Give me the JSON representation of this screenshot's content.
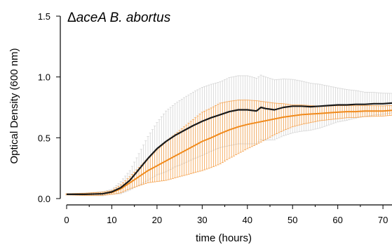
{
  "chart_data": {
    "type": "line",
    "title_symbol": "Δ",
    "title_gene": "aceA",
    "title_rest": " B. abortus",
    "xlabel": "time (hours)",
    "ylabel": "Optical Density (600 nm)",
    "xlim": [
      0,
      72
    ],
    "ylim": [
      0,
      1.5
    ],
    "x_ticks": [
      0,
      10,
      20,
      30,
      40,
      50,
      60,
      70
    ],
    "x_tick_labels": [
      "0",
      "10",
      "20",
      "30",
      "40",
      "50",
      "60",
      "70"
    ],
    "y_ticks": [
      0,
      0.5,
      1.0,
      1.5
    ],
    "y_tick_labels": [
      "0.0",
      "0.5",
      "1.0",
      "1.5"
    ],
    "grid": false,
    "legend": "none",
    "series": [
      {
        "color": "#1a1a1a",
        "error_color": "#d4d4d4",
        "points": [
          [
            0,
            0.035
          ],
          [
            4,
            0.035
          ],
          [
            8,
            0.04
          ],
          [
            10,
            0.055
          ],
          [
            12,
            0.09
          ],
          [
            14,
            0.15
          ],
          [
            16,
            0.24
          ],
          [
            18,
            0.33
          ],
          [
            20,
            0.41
          ],
          [
            22,
            0.47
          ],
          [
            24,
            0.52
          ],
          [
            26,
            0.56
          ],
          [
            28,
            0.6
          ],
          [
            30,
            0.635
          ],
          [
            32,
            0.665
          ],
          [
            34,
            0.69
          ],
          [
            36,
            0.715
          ],
          [
            38,
            0.73
          ],
          [
            40,
            0.73
          ],
          [
            42,
            0.72
          ],
          [
            43,
            0.75
          ],
          [
            44,
            0.74
          ],
          [
            46,
            0.73
          ],
          [
            48,
            0.75
          ],
          [
            50,
            0.76
          ],
          [
            52,
            0.76
          ],
          [
            54,
            0.755
          ],
          [
            56,
            0.76
          ],
          [
            58,
            0.765
          ],
          [
            60,
            0.77
          ],
          [
            62,
            0.77
          ],
          [
            64,
            0.775
          ],
          [
            66,
            0.775
          ],
          [
            68,
            0.78
          ],
          [
            70,
            0.78
          ],
          [
            72,
            0.785
          ]
        ],
        "error": [
          [
            0,
            0.005
          ],
          [
            10,
            0.02
          ],
          [
            14,
            0.08
          ],
          [
            18,
            0.18
          ],
          [
            22,
            0.25
          ],
          [
            26,
            0.27
          ],
          [
            30,
            0.28
          ],
          [
            34,
            0.27
          ],
          [
            36,
            0.28
          ],
          [
            40,
            0.28
          ],
          [
            44,
            0.26
          ],
          [
            50,
            0.22
          ],
          [
            56,
            0.18
          ],
          [
            60,
            0.14
          ],
          [
            66,
            0.1
          ],
          [
            72,
            0.08
          ]
        ]
      },
      {
        "color": "#f08a1c",
        "error_color": "#f5a04a",
        "points": [
          [
            0,
            0.035
          ],
          [
            4,
            0.035
          ],
          [
            8,
            0.04
          ],
          [
            10,
            0.05
          ],
          [
            12,
            0.08
          ],
          [
            14,
            0.13
          ],
          [
            16,
            0.18
          ],
          [
            18,
            0.23
          ],
          [
            20,
            0.27
          ],
          [
            22,
            0.31
          ],
          [
            24,
            0.35
          ],
          [
            26,
            0.39
          ],
          [
            28,
            0.43
          ],
          [
            30,
            0.47
          ],
          [
            32,
            0.5
          ],
          [
            34,
            0.535
          ],
          [
            36,
            0.565
          ],
          [
            38,
            0.59
          ],
          [
            40,
            0.61
          ],
          [
            42,
            0.625
          ],
          [
            44,
            0.64
          ],
          [
            46,
            0.655
          ],
          [
            48,
            0.67
          ],
          [
            50,
            0.68
          ],
          [
            52,
            0.69
          ],
          [
            54,
            0.695
          ],
          [
            56,
            0.7
          ],
          [
            58,
            0.705
          ],
          [
            60,
            0.71
          ],
          [
            62,
            0.715
          ],
          [
            64,
            0.715
          ],
          [
            66,
            0.72
          ],
          [
            68,
            0.72
          ],
          [
            70,
            0.72
          ],
          [
            72,
            0.725
          ]
        ],
        "error": [
          [
            0,
            0.005
          ],
          [
            10,
            0.015
          ],
          [
            14,
            0.05
          ],
          [
            18,
            0.1
          ],
          [
            22,
            0.16
          ],
          [
            26,
            0.2
          ],
          [
            30,
            0.24
          ],
          [
            34,
            0.25
          ],
          [
            38,
            0.22
          ],
          [
            42,
            0.18
          ],
          [
            46,
            0.13
          ],
          [
            50,
            0.09
          ],
          [
            56,
            0.06
          ],
          [
            62,
            0.05
          ],
          [
            72,
            0.04
          ]
        ]
      }
    ]
  }
}
